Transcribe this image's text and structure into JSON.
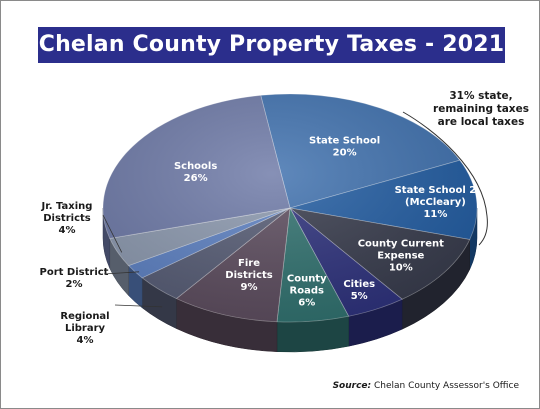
{
  "chart_data": {
    "type": "pie",
    "title": "Chelan County Property Taxes - 2021",
    "slices": [
      {
        "label": "State School",
        "value": 20,
        "display": "20%",
        "color": "#3d6fad"
      },
      {
        "label": "State School 2 (McCleary)",
        "value": 11,
        "display": "11%",
        "color": "#1f5aa0"
      },
      {
        "label": "County Current Expense",
        "value": 10,
        "display": "10%",
        "color": "#35394a"
      },
      {
        "label": "Cities",
        "value": 5,
        "display": "5%",
        "color": "#2b2f7a"
      },
      {
        "label": "County Roads",
        "value": 6,
        "display": "6%",
        "color": "#2e6f6d"
      },
      {
        "label": "Fire Districts",
        "value": 9,
        "display": "9%",
        "color": "#5a4a5c"
      },
      {
        "label": "Regional Library",
        "value": 4,
        "display": "4%",
        "color": "#545a73"
      },
      {
        "label": "Port District",
        "value": 2,
        "display": "2%",
        "color": "#5b7fc1"
      },
      {
        "label": "Jr. Taxing Districts",
        "value": 4,
        "display": "4%",
        "color": "#8a97ad"
      },
      {
        "label": "Schools",
        "value": 26,
        "display": "26%",
        "color": "#6c78a6"
      }
    ],
    "annotation": "31% state, remaining taxes are local taxes",
    "source_label": "Source:",
    "source_text": "Chelan County Assessor's Office"
  }
}
